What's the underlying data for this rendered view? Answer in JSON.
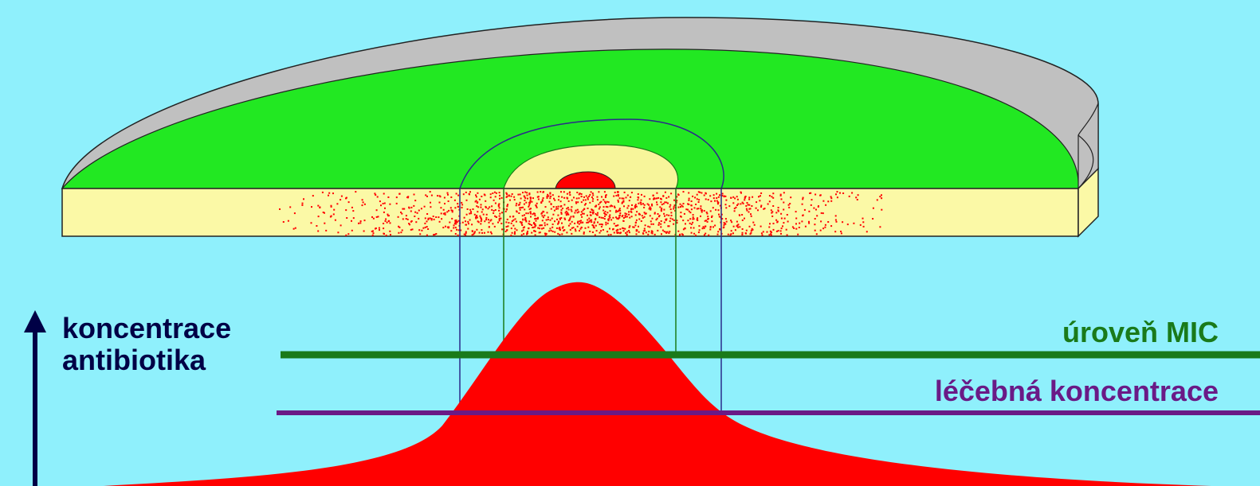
{
  "labels": {
    "axis_line1": "koncentrace",
    "axis_line2": "antibiotika",
    "mic": "úroveň MIC",
    "therapeutic": "léčebná koncentrace"
  },
  "colors": {
    "background": "#8ff0fc",
    "disc_rim": "#c0c0c0",
    "agar_surface": "#22e822",
    "agar_side": "#fbf9a6",
    "inhibition_zone": "#f7f59a",
    "antibiotic": "#ff0000",
    "mic_line": "#1a7a1a",
    "therapeutic_line": "#6a1a86",
    "axis": "#000046",
    "zone_outline": "#2a2a8a"
  }
}
